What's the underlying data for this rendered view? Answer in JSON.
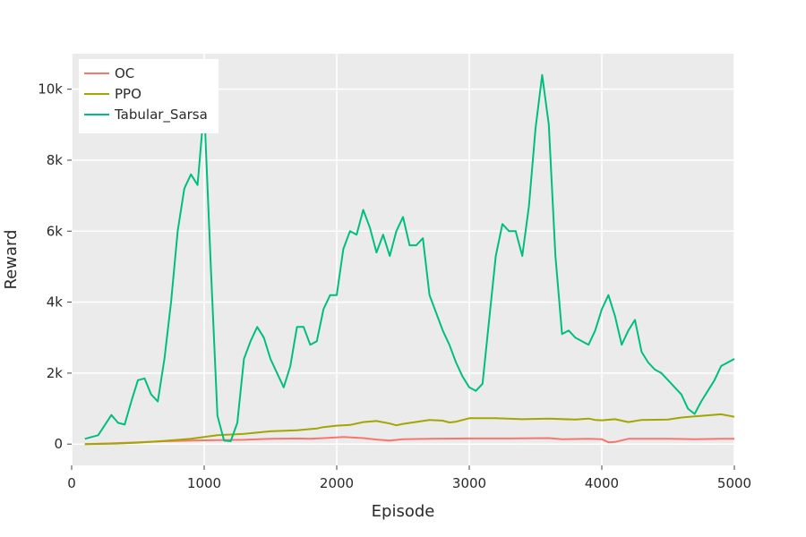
{
  "chart_data": {
    "type": "line",
    "title": "",
    "xlabel": "Episode",
    "ylabel": "Reward",
    "xlim": [
      0,
      5000
    ],
    "ylim": [
      -600,
      11000
    ],
    "x_ticks": [
      0,
      1000,
      2000,
      3000,
      4000,
      5000
    ],
    "x_tick_labels": [
      "0",
      "1000",
      "2000",
      "3000",
      "4000",
      "5000"
    ],
    "y_ticks": [
      0,
      2000,
      4000,
      6000,
      8000,
      10000
    ],
    "y_tick_labels": [
      "0",
      "2k",
      "4k",
      "6k",
      "8k",
      "10k"
    ],
    "grid": true,
    "legend_position": "top-left",
    "background_color": "#ebebeb",
    "series": [
      {
        "name": "OC",
        "color": "#f8766d",
        "points": [
          [
            100,
            0
          ],
          [
            300,
            20
          ],
          [
            500,
            50
          ],
          [
            700,
            80
          ],
          [
            900,
            100
          ],
          [
            1100,
            110
          ],
          [
            1300,
            120
          ],
          [
            1500,
            150
          ],
          [
            1700,
            160
          ],
          [
            1800,
            150
          ],
          [
            1900,
            170
          ],
          [
            2050,
            200
          ],
          [
            2200,
            170
          ],
          [
            2300,
            130
          ],
          [
            2400,
            100
          ],
          [
            2500,
            140
          ],
          [
            2700,
            150
          ],
          [
            3000,
            160
          ],
          [
            3300,
            160
          ],
          [
            3600,
            170
          ],
          [
            3700,
            140
          ],
          [
            3900,
            150
          ],
          [
            4000,
            140
          ],
          [
            4050,
            50
          ],
          [
            4100,
            60
          ],
          [
            4200,
            150
          ],
          [
            4500,
            150
          ],
          [
            4700,
            140
          ],
          [
            4900,
            150
          ],
          [
            5000,
            150
          ]
        ]
      },
      {
        "name": "PPO",
        "color": "#a3a500",
        "points": [
          [
            100,
            0
          ],
          [
            300,
            10
          ],
          [
            500,
            40
          ],
          [
            700,
            90
          ],
          [
            900,
            150
          ],
          [
            1000,
            200
          ],
          [
            1100,
            250
          ],
          [
            1300,
            290
          ],
          [
            1500,
            360
          ],
          [
            1700,
            390
          ],
          [
            1850,
            440
          ],
          [
            1900,
            480
          ],
          [
            2000,
            520
          ],
          [
            2100,
            540
          ],
          [
            2200,
            620
          ],
          [
            2300,
            650
          ],
          [
            2400,
            580
          ],
          [
            2450,
            530
          ],
          [
            2500,
            570
          ],
          [
            2700,
            680
          ],
          [
            2800,
            660
          ],
          [
            2850,
            610
          ],
          [
            2900,
            630
          ],
          [
            3000,
            730
          ],
          [
            3200,
            730
          ],
          [
            3400,
            700
          ],
          [
            3600,
            720
          ],
          [
            3800,
            690
          ],
          [
            3900,
            720
          ],
          [
            3950,
            680
          ],
          [
            4000,
            670
          ],
          [
            4100,
            700
          ],
          [
            4200,
            620
          ],
          [
            4300,
            680
          ],
          [
            4500,
            690
          ],
          [
            4600,
            750
          ],
          [
            4700,
            780
          ],
          [
            4900,
            840
          ],
          [
            5000,
            770
          ]
        ]
      },
      {
        "name": "Tabular_Sarsa",
        "color": "#00bf7d",
        "points": [
          [
            100,
            150
          ],
          [
            200,
            250
          ],
          [
            300,
            820
          ],
          [
            350,
            600
          ],
          [
            400,
            550
          ],
          [
            450,
            1200
          ],
          [
            500,
            1800
          ],
          [
            550,
            1850
          ],
          [
            600,
            1400
          ],
          [
            650,
            1200
          ],
          [
            700,
            2400
          ],
          [
            750,
            4000
          ],
          [
            800,
            6000
          ],
          [
            850,
            7200
          ],
          [
            900,
            7600
          ],
          [
            950,
            7300
          ],
          [
            1000,
            9500
          ],
          [
            1050,
            5000
          ],
          [
            1100,
            800
          ],
          [
            1150,
            100
          ],
          [
            1200,
            80
          ],
          [
            1250,
            600
          ],
          [
            1300,
            2400
          ],
          [
            1350,
            2900
          ],
          [
            1400,
            3300
          ],
          [
            1450,
            3000
          ],
          [
            1500,
            2400
          ],
          [
            1550,
            2000
          ],
          [
            1600,
            1600
          ],
          [
            1650,
            2200
          ],
          [
            1700,
            3300
          ],
          [
            1750,
            3300
          ],
          [
            1800,
            2800
          ],
          [
            1850,
            2900
          ],
          [
            1900,
            3800
          ],
          [
            1950,
            4200
          ],
          [
            2000,
            4200
          ],
          [
            2050,
            5500
          ],
          [
            2100,
            6000
          ],
          [
            2150,
            5900
          ],
          [
            2200,
            6600
          ],
          [
            2250,
            6100
          ],
          [
            2300,
            5400
          ],
          [
            2350,
            5900
          ],
          [
            2400,
            5300
          ],
          [
            2450,
            6000
          ],
          [
            2500,
            6400
          ],
          [
            2550,
            5600
          ],
          [
            2600,
            5600
          ],
          [
            2650,
            5800
          ],
          [
            2700,
            4200
          ],
          [
            2750,
            3700
          ],
          [
            2800,
            3200
          ],
          [
            2850,
            2800
          ],
          [
            2900,
            2300
          ],
          [
            2950,
            1900
          ],
          [
            3000,
            1600
          ],
          [
            3050,
            1500
          ],
          [
            3100,
            1700
          ],
          [
            3150,
            3500
          ],
          [
            3200,
            5300
          ],
          [
            3250,
            6200
          ],
          [
            3300,
            6000
          ],
          [
            3350,
            6000
          ],
          [
            3400,
            5300
          ],
          [
            3450,
            6700
          ],
          [
            3500,
            8900
          ],
          [
            3550,
            10400
          ],
          [
            3600,
            9000
          ],
          [
            3650,
            5300
          ],
          [
            3700,
            3100
          ],
          [
            3750,
            3200
          ],
          [
            3800,
            3000
          ],
          [
            3850,
            2900
          ],
          [
            3900,
            2800
          ],
          [
            3950,
            3200
          ],
          [
            4000,
            3800
          ],
          [
            4050,
            4200
          ],
          [
            4100,
            3600
          ],
          [
            4150,
            2800
          ],
          [
            4200,
            3200
          ],
          [
            4250,
            3500
          ],
          [
            4300,
            2600
          ],
          [
            4350,
            2300
          ],
          [
            4400,
            2100
          ],
          [
            4450,
            2000
          ],
          [
            4500,
            1800
          ],
          [
            4550,
            1600
          ],
          [
            4600,
            1400
          ],
          [
            4650,
            1000
          ],
          [
            4700,
            850
          ],
          [
            4750,
            1200
          ],
          [
            4800,
            1500
          ],
          [
            4850,
            1800
          ],
          [
            4900,
            2200
          ],
          [
            4950,
            2300
          ],
          [
            5000,
            2400
          ]
        ]
      }
    ]
  }
}
